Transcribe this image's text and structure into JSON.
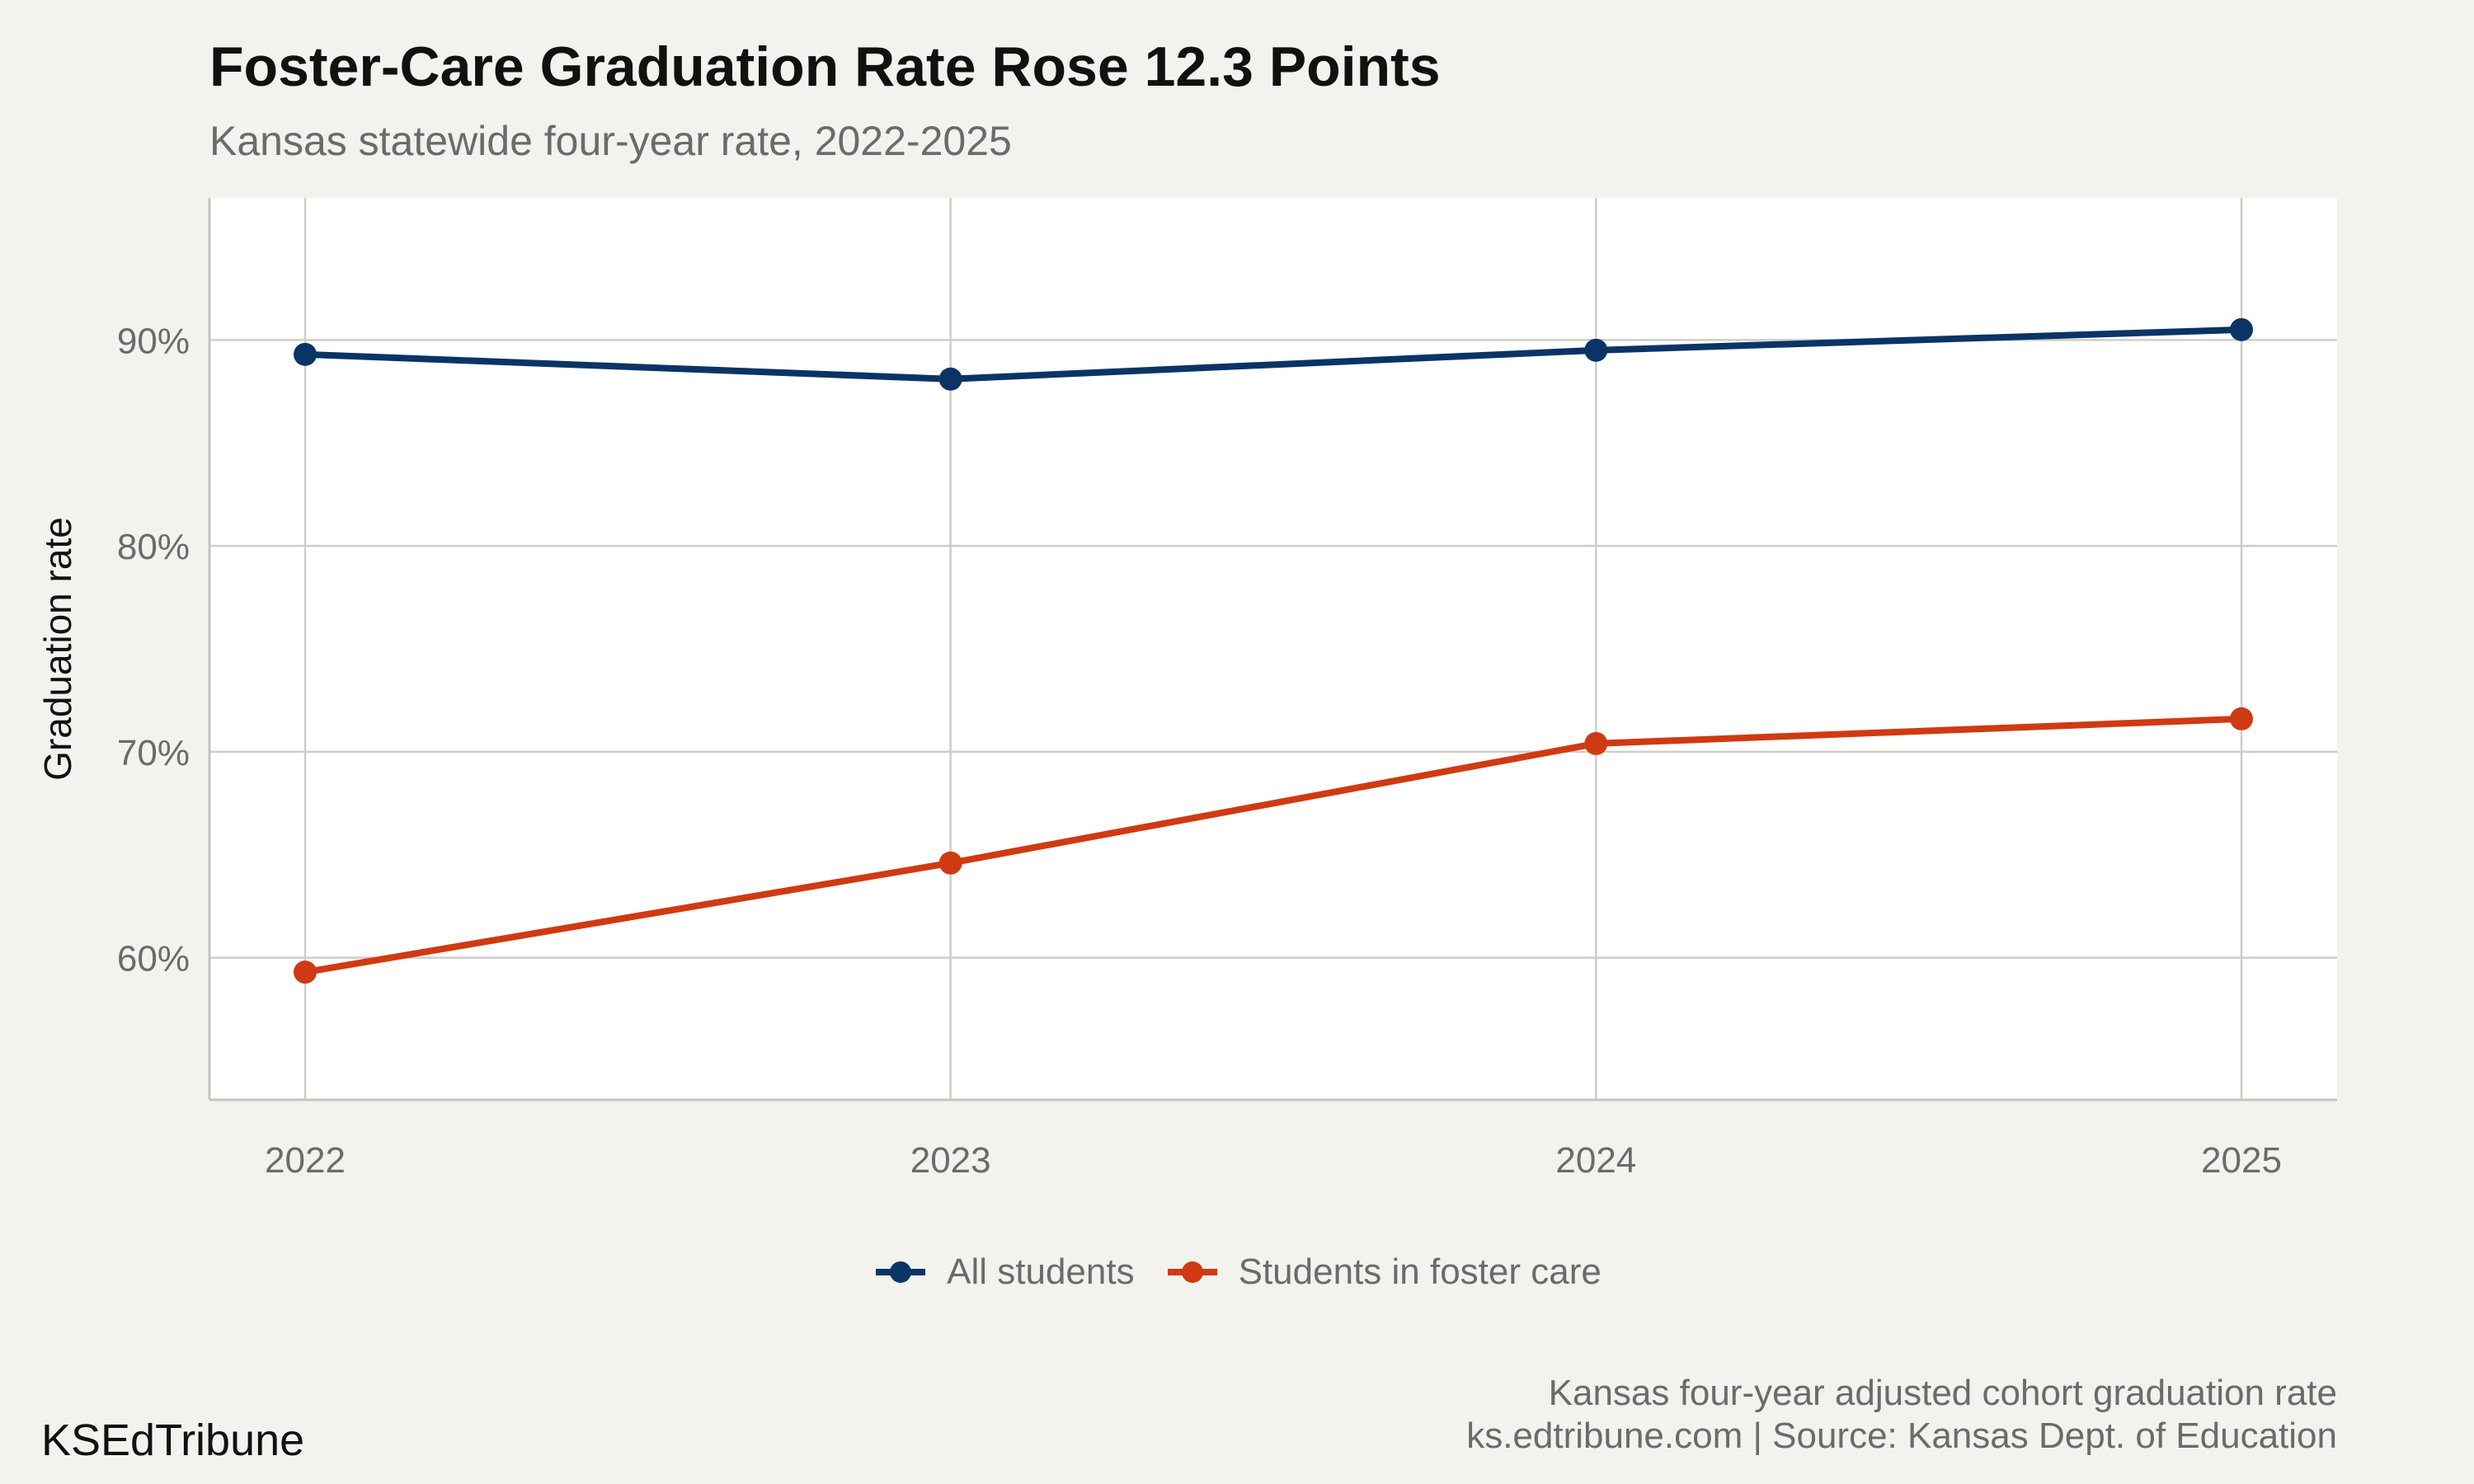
{
  "title": "Foster-Care Graduation Rate Rose 12.3 Points",
  "subtitle": "Kansas statewide four-year rate, 2022-2025",
  "caption_line1": "Kansas four-year adjusted cohort graduation rate",
  "caption_line2": "ks.edtribune.com | Source: Kansas Dept. of Education",
  "brand": "KSEdTribune",
  "colors": {
    "background": "#f4f2ee",
    "panel": "#ffffff",
    "grid": "#cfcdc8",
    "all_students": "#0b3466",
    "foster_care": "#d03a12"
  },
  "chart_data": {
    "type": "line",
    "x": [
      2022,
      2023,
      2024,
      2025
    ],
    "x_tick_labels": [
      "2022",
      "2023",
      "2024",
      "2025"
    ],
    "y_ticks": [
      60,
      70,
      80,
      90
    ],
    "y_tick_labels": [
      "60%",
      "70%",
      "80%",
      "90%"
    ],
    "ylim": [
      53.1,
      96.9
    ],
    "ylabel": "Graduation rate",
    "xlabel": "",
    "grid": true,
    "legend_position": "bottom",
    "series": [
      {
        "name": "All students",
        "color": "#0b3466",
        "values": [
          89.3,
          88.1,
          89.5,
          90.5
        ]
      },
      {
        "name": "Students in foster care",
        "color": "#d03a12",
        "values": [
          59.3,
          64.6,
          70.4,
          71.6
        ]
      }
    ]
  }
}
